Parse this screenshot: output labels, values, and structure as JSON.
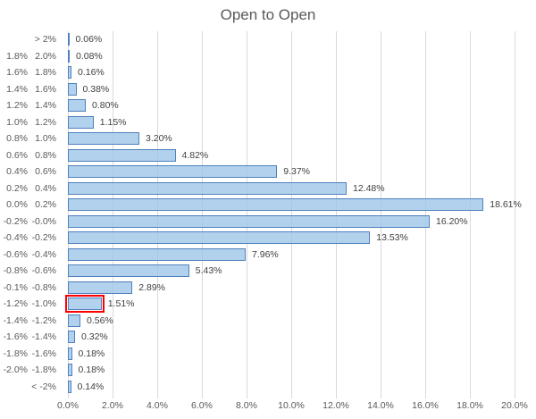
{
  "chart_data": {
    "type": "bar",
    "orientation": "horizontal",
    "title": "Open to Open",
    "xlabel": "",
    "ylabel": "",
    "xlim": [
      0,
      20
    ],
    "grid": true,
    "x_ticks": [
      "0.0%",
      "2.0%",
      "4.0%",
      "6.0%",
      "8.0%",
      "10.0%",
      "12.0%",
      "14.0%",
      "16.0%",
      "18.0%",
      "20.0%"
    ],
    "categories": [
      "> 2%",
      "1.8% 2.0%",
      "1.6% 1.8%",
      "1.4% 1.6%",
      "1.2% 1.4%",
      "1.0% 1.2%",
      "0.8% 1.0%",
      "0.6% 0.8%",
      "0.4% 0.6%",
      "0.2% 0.4%",
      "0.0% 0.2%",
      "-0.2% -0.0%",
      "-0.4% -0.2%",
      "-0.6% -0.4%",
      "-0.8% -0.6%",
      "-0.1% -0.8%",
      "-1.2% -1.0%",
      "-1.4% -1.2%",
      "-1.6% -1.4%",
      "-1.8% -1.6%",
      "-2.0% -1.8%",
      "< -2%"
    ],
    "category_parts": [
      [
        "",
        "> 2%"
      ],
      [
        "1.8%",
        "2.0%"
      ],
      [
        "1.6%",
        "1.8%"
      ],
      [
        "1.4%",
        "1.6%"
      ],
      [
        "1.2%",
        "1.4%"
      ],
      [
        "1.0%",
        "1.2%"
      ],
      [
        "0.8%",
        "1.0%"
      ],
      [
        "0.6%",
        "0.8%"
      ],
      [
        "0.4%",
        "0.6%"
      ],
      [
        "0.2%",
        "0.4%"
      ],
      [
        "0.0%",
        "0.2%"
      ],
      [
        "-0.2%",
        "-0.0%"
      ],
      [
        "-0.4%",
        "-0.2%"
      ],
      [
        "-0.6%",
        "-0.4%"
      ],
      [
        "-0.8%",
        "-0.6%"
      ],
      [
        "-0.1%",
        "-0.8%"
      ],
      [
        "-1.2%",
        "-1.0%"
      ],
      [
        "-1.4%",
        "-1.2%"
      ],
      [
        "-1.6%",
        "-1.4%"
      ],
      [
        "-1.8%",
        "-1.6%"
      ],
      [
        "-2.0%",
        "-1.8%"
      ],
      [
        "",
        "< -2%"
      ]
    ],
    "values": [
      0.06,
      0.08,
      0.16,
      0.38,
      0.8,
      1.15,
      3.2,
      4.82,
      9.37,
      12.48,
      18.61,
      16.2,
      13.53,
      7.96,
      5.43,
      2.89,
      1.51,
      0.56,
      0.32,
      0.18,
      0.18,
      0.14
    ],
    "data_labels": [
      "0.06%",
      "0.08%",
      "0.16%",
      "0.38%",
      "0.80%",
      "1.15%",
      "3.20%",
      "4.82%",
      "9.37%",
      "12.48%",
      "18.61%",
      "16.20%",
      "13.53%",
      "7.96%",
      "5.43%",
      "2.89%",
      "1.51%",
      "0.56%",
      "0.32%",
      "0.18%",
      "0.18%",
      "0.14%"
    ],
    "highlight": {
      "category": "-1.2% -1.0%",
      "index": 16,
      "border_color": "#FF0000"
    },
    "colors": {
      "bar_fill": "#9EC5E8",
      "bar_fill_opacity": 0.8,
      "bar_border": "#4F81BD",
      "gridline": "#D9D9D9",
      "title_text": "#595959",
      "axis_text": "#595959",
      "data_label_text": "#404040"
    },
    "legend": null
  }
}
